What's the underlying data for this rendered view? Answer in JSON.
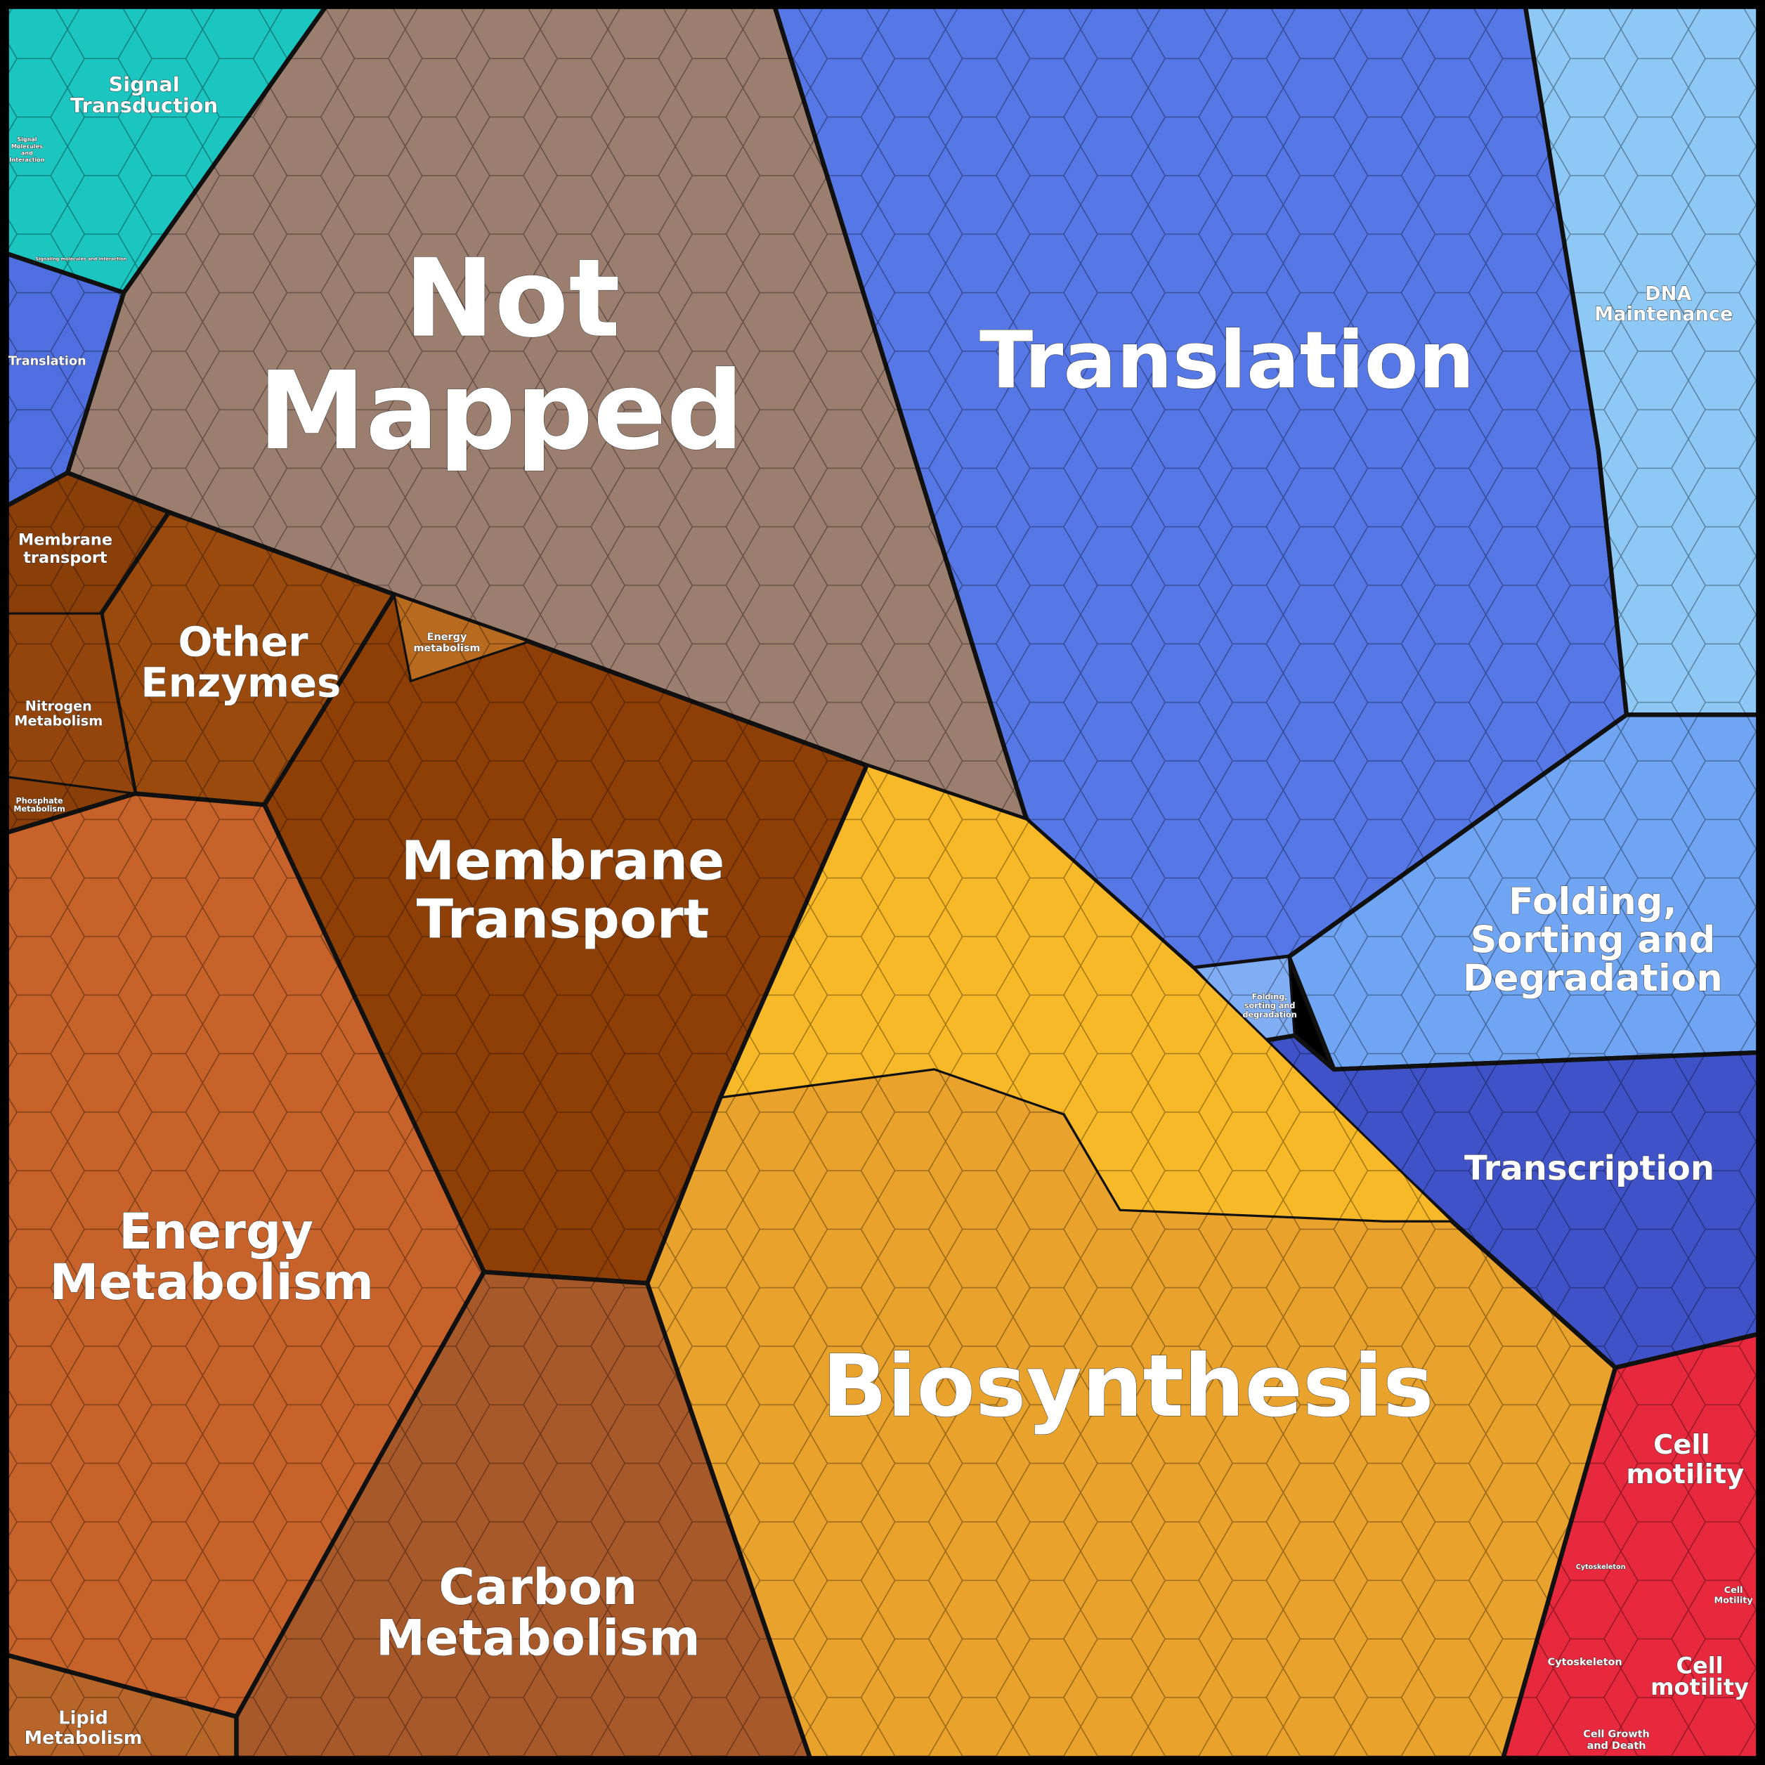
{
  "regions": [
    {
      "lines": [
        "Not",
        "Mapped"
      ]
    },
    {
      "lines": [
        "Translation"
      ]
    },
    {
      "lines": [
        "Biosynthesis"
      ]
    },
    {
      "lines": [
        "Membrane",
        "Transport"
      ]
    },
    {
      "lines": [
        "Energy",
        "Metabolism"
      ]
    },
    {
      "lines": [
        "Carbon",
        "Metabolism"
      ]
    },
    {
      "lines": [
        "Other",
        "Enzymes"
      ]
    },
    {
      "lines": [
        "Folding,",
        "Sorting and",
        "Degradation"
      ]
    },
    {
      "lines": [
        "Transcription"
      ]
    },
    {
      "lines": [
        "DNA",
        "Maintenance"
      ]
    },
    {
      "lines": [
        "Signal",
        "Transduction"
      ]
    },
    {
      "lines": [
        "Cell",
        "motility"
      ]
    },
    {
      "lines": [
        "Cell",
        "motility"
      ]
    },
    {
      "lines": [
        "Translation"
      ]
    },
    {
      "lines": [
        "Membrane",
        "transport"
      ]
    },
    {
      "lines": [
        "Nitrogen",
        "Metabolism"
      ]
    },
    {
      "lines": [
        "Phosphate",
        "Metabolism"
      ]
    },
    {
      "lines": [
        "Lipid",
        "Metabolism"
      ]
    },
    {
      "lines": [
        "Energy",
        "metabolism"
      ]
    },
    {
      "lines": [
        "Folding,",
        "sorting and",
        "degradation"
      ]
    },
    {
      "lines": [
        "Cytoskeleton"
      ]
    },
    {
      "lines": [
        "Cell Growth",
        "and Death"
      ]
    },
    {
      "lines": [
        "Cytoskeleton"
      ]
    },
    {
      "lines": [
        "Cell",
        "Motility"
      ]
    },
    {
      "lines": [
        "Signal",
        "Molecules",
        "and",
        "Interaction"
      ]
    },
    {
      "lines": [
        "Signaling molecules and interaction"
      ]
    }
  ]
}
